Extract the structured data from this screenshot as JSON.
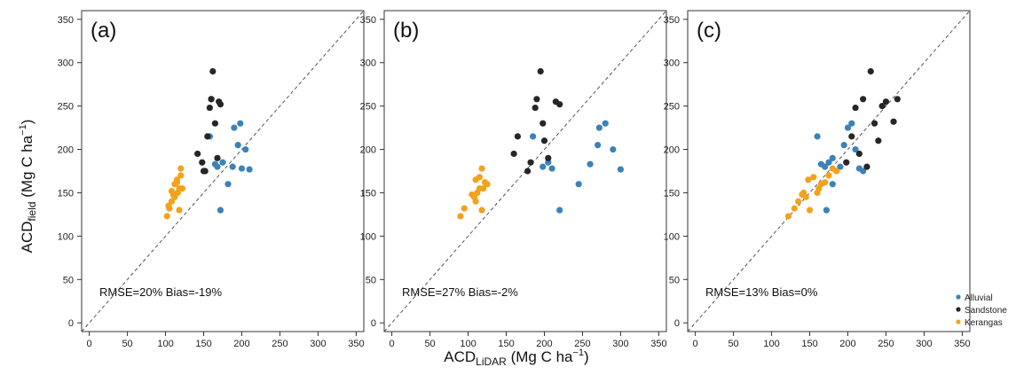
{
  "figure": {
    "ylabel": {
      "main": "ACD",
      "sub": "field",
      "unit": " (Mg C  ha",
      "sup": "−1",
      "close": ")"
    },
    "xlabel": {
      "main": "ACD",
      "sub": "LiDAR",
      "unit": " (Mg C  ha",
      "sup": "−1",
      "close": ")"
    }
  },
  "legend": {
    "items": [
      {
        "label": "Alluvial",
        "color": "#3b82b8"
      },
      {
        "label": "Sandstone",
        "color": "#262626"
      },
      {
        "label": "Kerangas",
        "color": "#f2a21b"
      }
    ]
  },
  "chart_data": [
    {
      "type": "scatter",
      "panel_label": "(a)",
      "annotation": "RMSE=20% Bias=-19%",
      "xlim": [
        -10,
        360
      ],
      "ylim": [
        -10,
        360
      ],
      "ticks": [
        0,
        50,
        100,
        150,
        200,
        250,
        300,
        350
      ],
      "reference_line": "1:1 dashed",
      "series": [
        {
          "name": "Alluvial",
          "color": "#3b82b8",
          "x": [
            158,
            165,
            168,
            172,
            175,
            182,
            188,
            190,
            195,
            198,
            200,
            205,
            210
          ],
          "y": [
            215,
            183,
            180,
            130,
            185,
            160,
            180,
            225,
            205,
            230,
            178,
            200,
            177
          ]
        },
        {
          "name": "Sandstone",
          "color": "#262626",
          "x": [
            142,
            148,
            152,
            155,
            158,
            160,
            162,
            165,
            168,
            170,
            172,
            150,
            160
          ],
          "y": [
            195,
            185,
            175,
            215,
            248,
            258,
            290,
            230,
            190,
            255,
            252,
            175,
            258
          ]
        },
        {
          "name": "Kerangas",
          "color": "#f2a21b",
          "x": [
            102,
            105,
            108,
            110,
            112,
            115,
            116,
            118,
            120,
            122,
            112,
            115,
            120,
            108,
            118,
            104
          ],
          "y": [
            123,
            132,
            140,
            148,
            145,
            165,
            150,
            155,
            178,
            155,
            160,
            162,
            170,
            152,
            130,
            135
          ]
        }
      ]
    },
    {
      "type": "scatter",
      "panel_label": "(b)",
      "annotation": "RMSE=27% Bias=-2%",
      "xlim": [
        -10,
        360
      ],
      "ylim": [
        -10,
        360
      ],
      "ticks": [
        0,
        50,
        100,
        150,
        200,
        250,
        300,
        350
      ],
      "reference_line": "1:1 dashed",
      "series": [
        {
          "name": "Alluvial",
          "color": "#3b82b8",
          "x": [
            185,
            198,
            205,
            210,
            220,
            245,
            260,
            270,
            272,
            280,
            290,
            300
          ],
          "y": [
            215,
            180,
            185,
            178,
            130,
            160,
            183,
            205,
            225,
            230,
            200,
            177
          ]
        },
        {
          "name": "Sandstone",
          "color": "#262626",
          "x": [
            160,
            165,
            178,
            182,
            188,
            190,
            195,
            198,
            200,
            205,
            215,
            220
          ],
          "y": [
            195,
            215,
            175,
            185,
            248,
            258,
            290,
            230,
            210,
            190,
            255,
            252
          ]
        },
        {
          "name": "Kerangas",
          "color": "#f2a21b",
          "x": [
            90,
            95,
            105,
            108,
            110,
            112,
            115,
            118,
            120,
            122,
            125,
            115,
            110,
            118
          ],
          "y": [
            123,
            132,
            148,
            145,
            165,
            150,
            155,
            178,
            155,
            162,
            160,
            168,
            140,
            130
          ]
        }
      ]
    },
    {
      "type": "scatter",
      "panel_label": "(c)",
      "annotation": "RMSE=13% Bias=0%",
      "xlim": [
        -10,
        360
      ],
      "ylim": [
        -10,
        360
      ],
      "ticks": [
        0,
        50,
        100,
        150,
        200,
        250,
        300,
        350
      ],
      "reference_line": "1:1 dashed",
      "series": [
        {
          "name": "Alluvial",
          "color": "#3b82b8",
          "x": [
            160,
            165,
            170,
            172,
            175,
            180,
            190,
            195,
            200,
            205,
            210,
            215,
            220,
            180
          ],
          "y": [
            215,
            183,
            180,
            130,
            185,
            160,
            180,
            205,
            225,
            230,
            200,
            178,
            175,
            190
          ]
        },
        {
          "name": "Sandstone",
          "color": "#262626",
          "x": [
            198,
            205,
            210,
            215,
            220,
            225,
            230,
            235,
            240,
            245,
            250,
            260,
            265
          ],
          "y": [
            185,
            215,
            248,
            195,
            258,
            180,
            290,
            230,
            210,
            250,
            255,
            232,
            258
          ]
        },
        {
          "name": "Kerangas",
          "color": "#f2a21b",
          "x": [
            122,
            130,
            135,
            140,
            142,
            145,
            148,
            150,
            155,
            160,
            162,
            165,
            170,
            175,
            180,
            185
          ],
          "y": [
            123,
            132,
            140,
            148,
            150,
            145,
            165,
            130,
            168,
            150,
            155,
            160,
            162,
            170,
            178,
            175
          ]
        }
      ]
    }
  ]
}
